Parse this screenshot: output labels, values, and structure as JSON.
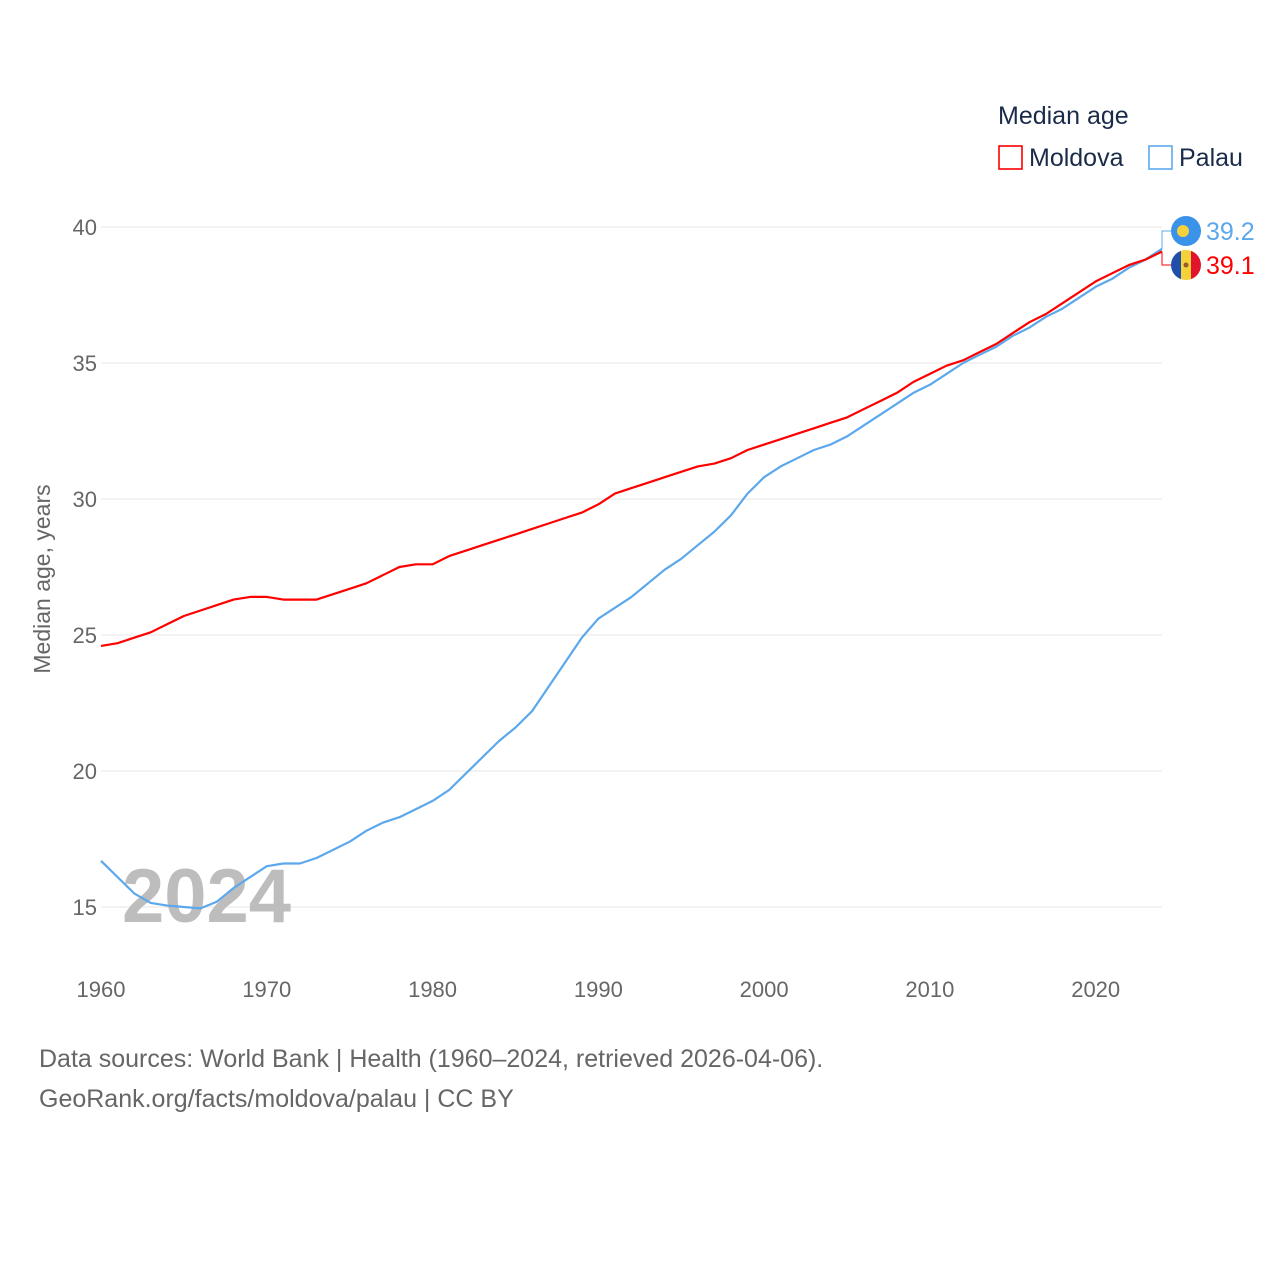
{
  "chart_data": {
    "type": "line",
    "title": "Median age",
    "xlabel": "",
    "ylabel": "Median age, years",
    "xlim": [
      1960,
      2024
    ],
    "ylim": [
      15,
      40
    ],
    "x_ticks": [
      "1960",
      "1970",
      "1980",
      "1990",
      "2000",
      "2010",
      "2020"
    ],
    "y_ticks": [
      "15",
      "20",
      "25",
      "30",
      "35",
      "40"
    ],
    "grid": true,
    "legend_position": "top-right",
    "watermark_year": "2024",
    "x": [
      1960,
      1961,
      1962,
      1963,
      1964,
      1965,
      1966,
      1967,
      1968,
      1969,
      1970,
      1971,
      1972,
      1973,
      1974,
      1975,
      1976,
      1977,
      1978,
      1979,
      1980,
      1981,
      1982,
      1983,
      1984,
      1985,
      1986,
      1987,
      1988,
      1989,
      1990,
      1991,
      1992,
      1993,
      1994,
      1995,
      1996,
      1997,
      1998,
      1999,
      2000,
      2001,
      2002,
      2003,
      2004,
      2005,
      2006,
      2007,
      2008,
      2009,
      2010,
      2011,
      2012,
      2013,
      2014,
      2015,
      2016,
      2017,
      2018,
      2019,
      2020,
      2021,
      2022,
      2023,
      2024
    ],
    "series": [
      {
        "name": "Moldova",
        "color": "#ff0000",
        "end_label": "39.1",
        "values": [
          24.6,
          24.7,
          24.9,
          25.1,
          25.4,
          25.7,
          25.9,
          26.1,
          26.3,
          26.4,
          26.4,
          26.3,
          26.3,
          26.3,
          26.5,
          26.7,
          26.9,
          27.2,
          27.5,
          27.6,
          27.6,
          27.9,
          28.1,
          28.3,
          28.5,
          28.7,
          28.9,
          29.1,
          29.3,
          29.5,
          29.8,
          30.2,
          30.4,
          30.6,
          30.8,
          31.0,
          31.2,
          31.3,
          31.5,
          31.8,
          32.0,
          32.2,
          32.4,
          32.6,
          32.8,
          33.0,
          33.3,
          33.6,
          33.9,
          34.3,
          34.6,
          34.9,
          35.1,
          35.4,
          35.7,
          36.1,
          36.5,
          36.8,
          37.2,
          37.6,
          38.0,
          38.3,
          38.6,
          38.8,
          39.1
        ]
      },
      {
        "name": "Palau",
        "color": "#5ca8ec",
        "end_label": "39.2",
        "values": [
          16.7,
          16.1,
          15.5,
          15.15,
          15.05,
          15.0,
          14.95,
          15.2,
          15.7,
          16.1,
          16.5,
          16.6,
          16.6,
          16.8,
          17.1,
          17.4,
          17.8,
          18.1,
          18.3,
          18.6,
          18.9,
          19.3,
          19.9,
          20.5,
          21.1,
          21.6,
          22.2,
          23.1,
          24.0,
          24.9,
          25.6,
          26.0,
          26.4,
          26.9,
          27.4,
          27.8,
          28.3,
          28.8,
          29.4,
          30.2,
          30.8,
          31.2,
          31.5,
          31.8,
          32.0,
          32.3,
          32.7,
          33.1,
          33.5,
          33.9,
          34.2,
          34.6,
          35.0,
          35.3,
          35.6,
          36.0,
          36.3,
          36.7,
          37.0,
          37.4,
          37.8,
          38.1,
          38.5,
          38.8,
          39.2
        ]
      }
    ]
  },
  "footer": {
    "line1": "Data sources: World Bank | Health (1960–2024, retrieved 2026-04-06).",
    "line2": "GeoRank.org/facts/moldova/palau | CC BY"
  }
}
